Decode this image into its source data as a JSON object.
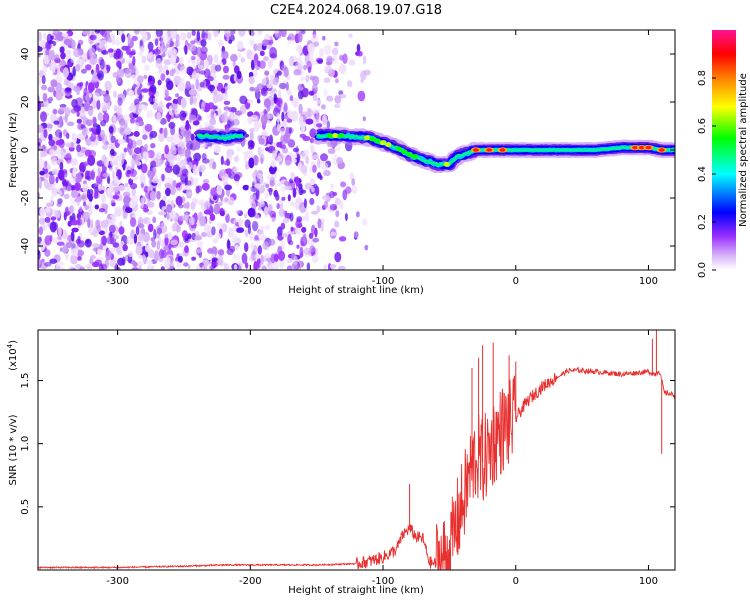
{
  "figure": {
    "title": "C2E4.2024.068.19.07.G18"
  },
  "chart_data": [
    {
      "type": "heatmap",
      "xlabel": "Height of straight line (km)",
      "ylabel": "Frequency (Hz)",
      "xlim": [
        -360,
        120
      ],
      "ylim": [
        -50,
        50
      ],
      "xticks": [
        -300,
        -200,
        -100,
        0,
        100
      ],
      "yticks": [
        -40,
        -20,
        0,
        20,
        40
      ],
      "colorbar": {
        "label": "Normalized spectral amplitude",
        "range": [
          0,
          1
        ],
        "ticks": [
          "0.0",
          "0.2",
          "0.4",
          "0.6",
          "0.8"
        ],
        "colormap": [
          "#ffffff",
          "#d8b4f8",
          "#9b30ff",
          "#0000ff",
          "#00ffff",
          "#00ff00",
          "#ffff00",
          "#ff8000",
          "#ff0000",
          "#ff1493"
        ]
      },
      "ridge": {
        "x": [
          -240,
          -220,
          -210,
          -150,
          -130,
          -110,
          -100,
          -90,
          -80,
          -70,
          -60,
          -50,
          -45,
          -40,
          -30,
          -20,
          -10,
          0,
          20,
          40,
          60,
          80,
          90,
          100,
          110,
          120
        ],
        "y": [
          6,
          5,
          6,
          6,
          6,
          5,
          3,
          1,
          -2,
          -4,
          -6,
          -6,
          -3,
          -2,
          0,
          0,
          0,
          0,
          0,
          0,
          0,
          1,
          1,
          1,
          0,
          0
        ],
        "peak_x": [
          -30,
          -20,
          -10,
          90,
          95,
          100,
          110
        ]
      }
    },
    {
      "type": "line",
      "xlabel": "Height of straight line (km)",
      "ylabel": "SNR (10 * v/v)",
      "yscale_label": "(x10^4)",
      "xlim": [
        -360,
        120
      ],
      "ylim": [
        0,
        1.9
      ],
      "xticks": [
        -300,
        -200,
        -100,
        0,
        100
      ],
      "yticks": [
        "0.5",
        "1.0",
        "1.5"
      ],
      "color": "#e8302f",
      "series": [
        {
          "x": [
            -360,
            -300,
            -250,
            -220,
            -200,
            -180,
            -150,
            -120,
            -110,
            -100,
            -90,
            -85,
            -80,
            -75,
            -70,
            -65,
            -60,
            -55,
            -50,
            -45,
            -40,
            -35,
            -30,
            -25,
            -20,
            -15,
            -10,
            -5,
            0,
            5,
            10,
            20,
            30,
            40,
            50,
            60,
            70,
            80,
            90,
            100,
            105,
            108,
            110,
            112,
            115,
            120
          ],
          "y": [
            0.02,
            0.02,
            0.03,
            0.04,
            0.04,
            0.04,
            0.04,
            0.05,
            0.07,
            0.1,
            0.16,
            0.28,
            0.33,
            0.26,
            0.25,
            0.06,
            0.05,
            0.08,
            0.12,
            0.35,
            0.52,
            0.75,
            0.9,
            0.85,
            0.95,
            1.05,
            1.12,
            1.15,
            1.2,
            1.28,
            1.35,
            1.45,
            1.52,
            1.58,
            1.58,
            1.57,
            1.56,
            1.55,
            1.56,
            1.57,
            1.55,
            1.58,
            1.5,
            1.4,
            1.4,
            1.38
          ],
          "spikes_x": [
            -80,
            -33,
            -28,
            -25,
            -17,
            -5,
            0,
            103,
            106,
            110
          ],
          "spikes_y": [
            0.68,
            1.6,
            1.68,
            1.78,
            1.8,
            1.7,
            1.65,
            1.83,
            1.9,
            0.92
          ]
        }
      ]
    }
  ]
}
